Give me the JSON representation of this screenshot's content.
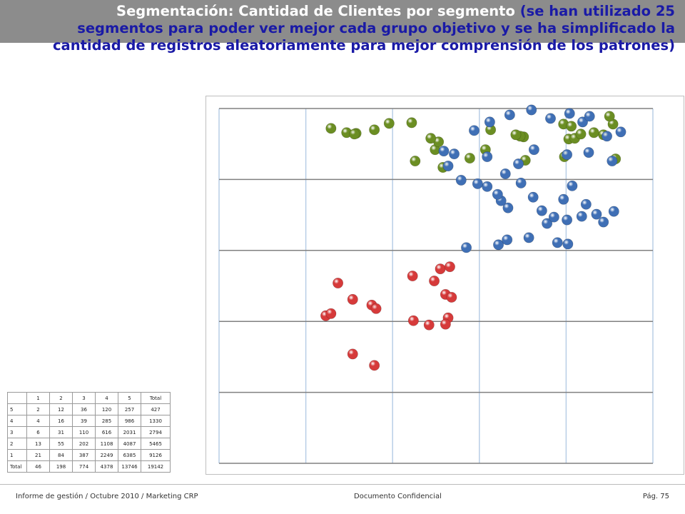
{
  "title": {
    "main": "Segmentación: Cantidad de Clientes por segmento",
    "note_line1": "(se han utilizado 25",
    "note_line2": "segmentos para poder ver mejor cada grupo objetivo y se ha simplificado la",
    "note_line3": "cantidad de registros aleatoriamente para mejor comprensión de los patrones)"
  },
  "colors": {
    "green": "#6b8e23",
    "blue": "#3f6fb5",
    "red": "#d63a3a",
    "grid_h": "#808080",
    "grid_v": "#b8cde6"
  },
  "table": {
    "header": [
      "",
      "1",
      "2",
      "3",
      "4",
      "5",
      "Total"
    ],
    "rows": [
      [
        "5",
        "2",
        "12",
        "36",
        "120",
        "257",
        "427"
      ],
      [
        "4",
        "4",
        "16",
        "39",
        "285",
        "986",
        "1330"
      ],
      [
        "3",
        "6",
        "31",
        "110",
        "616",
        "2031",
        "2794"
      ],
      [
        "2",
        "13",
        "55",
        "202",
        "1108",
        "4087",
        "5465"
      ],
      [
        "1",
        "21",
        "84",
        "387",
        "2249",
        "6385",
        "9126"
      ],
      [
        "Total",
        "46",
        "198",
        "774",
        "4378",
        "13746",
        "19142"
      ]
    ]
  },
  "chart_data": {
    "type": "scatter",
    "grid": true,
    "grid_columns": 5,
    "grid_rows": 5,
    "series": [
      {
        "color": "green",
        "points": [
          [
            1.58,
            0.35
          ],
          [
            2.49,
            0.58
          ],
          [
            3.07,
            0.58
          ],
          [
            3.51,
            0.4
          ],
          [
            3.53,
            0.73
          ],
          [
            3.98,
            0.68
          ],
          [
            3.97,
            0.22
          ],
          [
            4.06,
            0.25
          ],
          [
            4.03,
            0.43
          ],
          [
            4.1,
            0.42
          ],
          [
            4.17,
            0.36
          ],
          [
            4.32,
            0.34
          ],
          [
            4.43,
            0.37
          ],
          [
            4.54,
            0.22
          ],
          [
            4.57,
            0.71
          ],
          [
            4.5,
            0.11
          ],
          [
            1.29,
            0.28
          ],
          [
            1.47,
            0.34
          ],
          [
            1.56,
            0.36
          ],
          [
            1.79,
            0.3
          ],
          [
            1.96,
            0.21
          ],
          [
            2.22,
            0.2
          ],
          [
            3.13,
            0.3
          ],
          [
            3.47,
            0.39
          ],
          [
            3.42,
            0.37
          ],
          [
            2.53,
            0.47
          ],
          [
            2.89,
            0.7
          ],
          [
            2.58,
            0.83
          ],
          [
            2.26,
            0.74
          ],
          [
            2.44,
            0.42
          ]
        ]
      },
      {
        "color": "red",
        "points": [
          [
            1.54,
            3.46
          ],
          [
            1.79,
            3.62
          ],
          [
            2.24,
            2.99
          ],
          [
            2.42,
            3.05
          ],
          [
            2.64,
            2.95
          ],
          [
            1.23,
            2.92
          ],
          [
            1.29,
            2.89
          ],
          [
            1.37,
            2.46
          ],
          [
            1.54,
            2.69
          ],
          [
            1.76,
            2.77
          ],
          [
            1.81,
            2.82
          ],
          [
            2.48,
            2.43
          ],
          [
            2.61,
            2.62
          ],
          [
            2.68,
            2.66
          ],
          [
            2.23,
            2.36
          ],
          [
            2.55,
            2.26
          ],
          [
            2.66,
            2.23
          ],
          [
            2.61,
            3.04
          ]
        ]
      },
      {
        "color": "blue",
        "points": [
          [
            2.85,
            1.96
          ],
          [
            3.22,
            1.92
          ],
          [
            3.32,
            1.85
          ],
          [
            3.57,
            1.82
          ],
          [
            3.9,
            1.89
          ],
          [
            4.02,
            1.91
          ],
          [
            3.78,
            1.62
          ],
          [
            3.86,
            1.53
          ],
          [
            3.72,
            1.44
          ],
          [
            4.01,
            1.57
          ],
          [
            4.18,
            1.52
          ],
          [
            4.35,
            1.49
          ],
          [
            4.43,
            1.6
          ],
          [
            4.55,
            1.45
          ],
          [
            4.23,
            1.35
          ],
          [
            3.33,
            1.4
          ],
          [
            3.25,
            1.3
          ],
          [
            3.62,
            1.25
          ],
          [
            3.97,
            1.28
          ],
          [
            4.07,
            1.09
          ],
          [
            3.48,
            1.05
          ],
          [
            3.21,
            1.21
          ],
          [
            3.09,
            1.1
          ],
          [
            2.98,
            1.06
          ],
          [
            2.79,
            1.01
          ],
          [
            2.64,
            0.81
          ],
          [
            2.71,
            0.64
          ],
          [
            3.09,
            0.68
          ],
          [
            3.3,
            0.92
          ],
          [
            3.45,
            0.78
          ],
          [
            3.63,
            0.58
          ],
          [
            4.01,
            0.65
          ],
          [
            4.26,
            0.62
          ],
          [
            4.53,
            0.74
          ],
          [
            4.47,
            0.39
          ],
          [
            4.63,
            0.33
          ],
          [
            4.19,
            0.19
          ],
          [
            2.59,
            0.6
          ],
          [
            2.94,
            0.31
          ],
          [
            3.12,
            0.19
          ],
          [
            3.35,
            0.09
          ],
          [
            3.6,
            0.02
          ],
          [
            3.82,
            0.14
          ],
          [
            4.04,
            0.07
          ],
          [
            4.27,
            0.11
          ]
        ]
      }
    ]
  },
  "footer": {
    "left": "Informe de gestión / Octubre 2010 / Marketing CRP",
    "center": "Documento Confidencial",
    "right": "Pág. 75"
  }
}
